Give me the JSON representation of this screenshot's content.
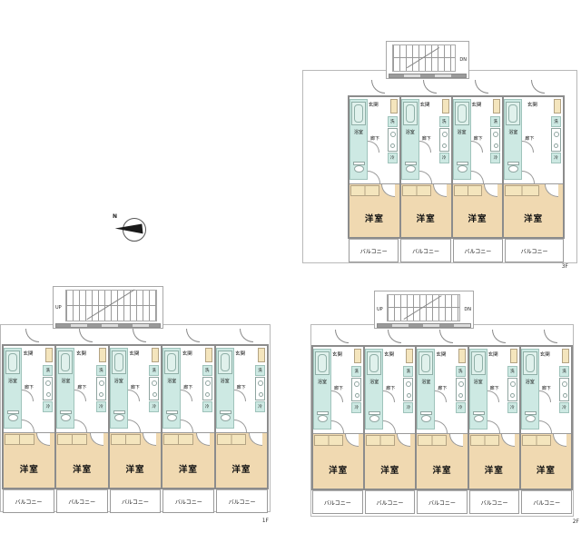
{
  "compass": {
    "north_label": "N"
  },
  "unit_labels": {
    "entrance": "玄関",
    "bathroom": "浴室",
    "hallway": "廊下",
    "washer": "洗",
    "fridge": "冷",
    "main_room": "洋室",
    "balcony": "バルコニー"
  },
  "floors": [
    {
      "name": "third-floor",
      "floor_label": "3F",
      "unit_count": 4,
      "stair": {
        "down": "DN"
      }
    },
    {
      "name": "first-floor",
      "floor_label": "1F",
      "unit_count": 5,
      "stair": {
        "up": "UP"
      }
    },
    {
      "name": "second-floor",
      "floor_label": "2F",
      "unit_count": 5,
      "stair": {
        "up": "UP",
        "down": "DN"
      }
    }
  ],
  "colors": {
    "bath_teal": "#cde9e3",
    "room_tan": "#f0d9b1",
    "cabinet_tan": "#f4e5bd",
    "wall_gray": "#8c8c8c",
    "line_gray": "#999999"
  }
}
